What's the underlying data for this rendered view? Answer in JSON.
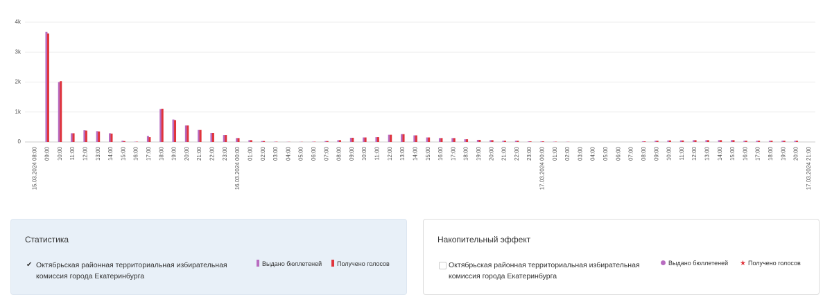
{
  "chart_data": {
    "type": "bar",
    "categories": [
      "15.03.2024 08:00",
      "09:00",
      "10:00",
      "11:00",
      "12:00",
      "13:00",
      "14:00",
      "15:00",
      "16:00",
      "17:00",
      "18:00",
      "19:00",
      "20:00",
      "21:00",
      "22:00",
      "23:00",
      "16.03.2024 00:00",
      "01:00",
      "02:00",
      "03:00",
      "04:00",
      "05:00",
      "06:00",
      "07:00",
      "08:00",
      "09:00",
      "10:00",
      "11:00",
      "12:00",
      "13:00",
      "14:00",
      "15:00",
      "16:00",
      "17:00",
      "18:00",
      "19:00",
      "20:00",
      "21:00",
      "22:00",
      "23:00",
      "17.03.2024 00:00",
      "01:00",
      "02:00",
      "03:00",
      "04:00",
      "05:00",
      "06:00",
      "07:00",
      "08:00",
      "09:00",
      "10:00",
      "11:00",
      "12:00",
      "13:00",
      "14:00",
      "15:00",
      "16:00",
      "17:00",
      "18:00",
      "19:00",
      "20:00",
      "17.03.2024 21:00"
    ],
    "series": [
      {
        "name": "Выдано бюллетеней",
        "color": "#b86cc0",
        "values": [
          0,
          3680,
          2000,
          290,
          390,
          360,
          290,
          40,
          10,
          200,
          1100,
          750,
          550,
          400,
          300,
          230,
          130,
          60,
          30,
          10,
          5,
          5,
          10,
          30,
          60,
          140,
          150,
          160,
          240,
          260,
          220,
          150,
          130,
          130,
          90,
          70,
          60,
          40,
          40,
          20,
          20,
          10,
          5,
          0,
          0,
          0,
          0,
          0,
          20,
          40,
          50,
          50,
          60,
          60,
          60,
          60,
          40,
          40,
          40,
          40,
          40,
          0
        ]
      },
      {
        "name": "Получено голосов",
        "color": "#e0343c",
        "values": [
          0,
          3620,
          2030,
          290,
          380,
          350,
          280,
          30,
          10,
          160,
          1110,
          730,
          550,
          400,
          300,
          230,
          130,
          60,
          30,
          10,
          5,
          5,
          10,
          30,
          60,
          140,
          150,
          160,
          240,
          260,
          220,
          150,
          130,
          130,
          90,
          70,
          60,
          40,
          40,
          20,
          20,
          10,
          5,
          0,
          0,
          0,
          0,
          0,
          20,
          40,
          50,
          50,
          60,
          60,
          60,
          60,
          40,
          40,
          40,
          40,
          40,
          0
        ]
      }
    ],
    "ylim": [
      0,
      4000
    ],
    "yticks": [
      0,
      {
        "value": 1000,
        "label": "1k"
      },
      {
        "value": 2000,
        "label": "2k"
      },
      {
        "value": 3000,
        "label": "3k"
      },
      {
        "value": 4000,
        "label": "4k"
      }
    ],
    "grid": true
  },
  "panels": [
    {
      "title": "Статистика",
      "item_label": "Октябрьская районная территориальная избирательная комиссия города Екатеринбурга",
      "checked": true
    },
    {
      "title": "Накопительный эффект",
      "item_label": "Октябрьская районная территориальная избирательная комиссия города Екатеринбурга",
      "checked": false
    }
  ]
}
